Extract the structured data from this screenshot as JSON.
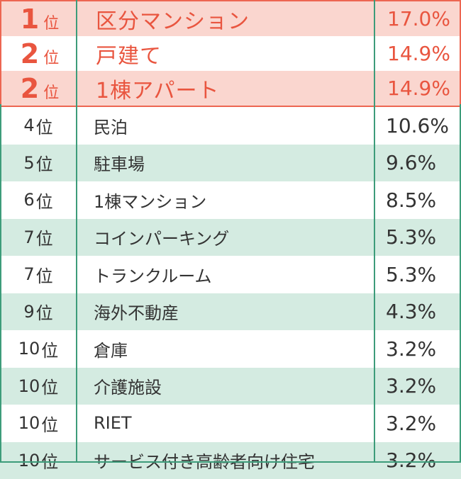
{
  "top_rows": [
    {
      "num": "1",
      "unit": "位",
      "name": "区分マンション",
      "pct": "17.0%"
    },
    {
      "num": "2",
      "unit": "位",
      "name": "戸建て",
      "pct": "14.9%"
    },
    {
      "num": "2",
      "unit": "位",
      "name": "1棟アパート",
      "pct": "14.9%"
    }
  ],
  "rows": [
    {
      "num": "4",
      "unit": "位",
      "name": "民泊",
      "pct": "10.6%"
    },
    {
      "num": "5",
      "unit": "位",
      "name": "駐車場",
      "pct": "9.6%"
    },
    {
      "num": "6",
      "unit": "位",
      "name": "1棟マンション",
      "pct": "8.5%"
    },
    {
      "num": "7",
      "unit": "位",
      "name": "コインパーキング",
      "pct": "5.3%"
    },
    {
      "num": "7",
      "unit": "位",
      "name": "トランクルーム",
      "pct": "5.3%"
    },
    {
      "num": "9",
      "unit": "位",
      "name": "海外不動産",
      "pct": "4.3%"
    },
    {
      "num": "10",
      "unit": "位",
      "name": "倉庫",
      "pct": "3.2%"
    },
    {
      "num": "10",
      "unit": "位",
      "name": "介護施設",
      "pct": "3.2%"
    },
    {
      "num": "10",
      "unit": "位",
      "name": "RIET",
      "pct": "3.2%"
    },
    {
      "num": "10",
      "unit": "位",
      "name": "サービス付き高齢者向け住宅",
      "pct": "3.2%"
    }
  ],
  "colors": {
    "top_accent": "#e9553f",
    "top_bg": "#fad6cf",
    "stripe_bg": "#d4ebe1",
    "rule": "#3d9c7a"
  }
}
